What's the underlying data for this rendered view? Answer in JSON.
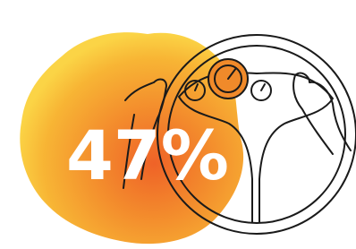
{
  "stat": "47%"
}
